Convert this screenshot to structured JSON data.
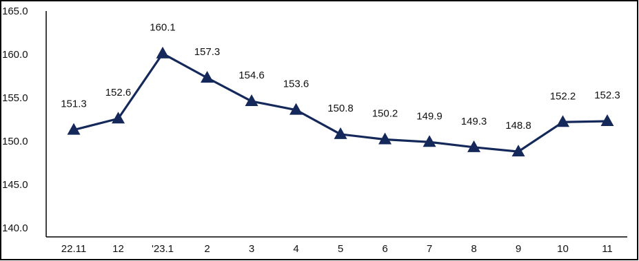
{
  "chart_data": {
    "type": "line",
    "title": "",
    "xlabel": "",
    "ylabel": "",
    "categories": [
      "22.11",
      "12",
      "'23.1",
      "2",
      "3",
      "4",
      "5",
      "6",
      "7",
      "8",
      "9",
      "10",
      "11"
    ],
    "series": [
      {
        "values": [
          151.3,
          152.6,
          160.1,
          157.3,
          154.6,
          153.6,
          150.8,
          150.2,
          149.9,
          149.3,
          148.8,
          152.2,
          152.3
        ]
      }
    ],
    "data_labels": [
      "151.3",
      "152.6",
      "160.1",
      "157.3",
      "154.6",
      "153.6",
      "150.8",
      "150.2",
      "149.9",
      "149.3",
      "148.8",
      "152.2",
      "152.3"
    ],
    "y_ticks": [
      "140.0",
      "145.0",
      "150.0",
      "155.0",
      "160.0",
      "165.0"
    ],
    "ylim": [
      140,
      165
    ],
    "grid": false,
    "legend": "none",
    "colors": {
      "series": "#14285a",
      "axis": "#000000"
    }
  }
}
